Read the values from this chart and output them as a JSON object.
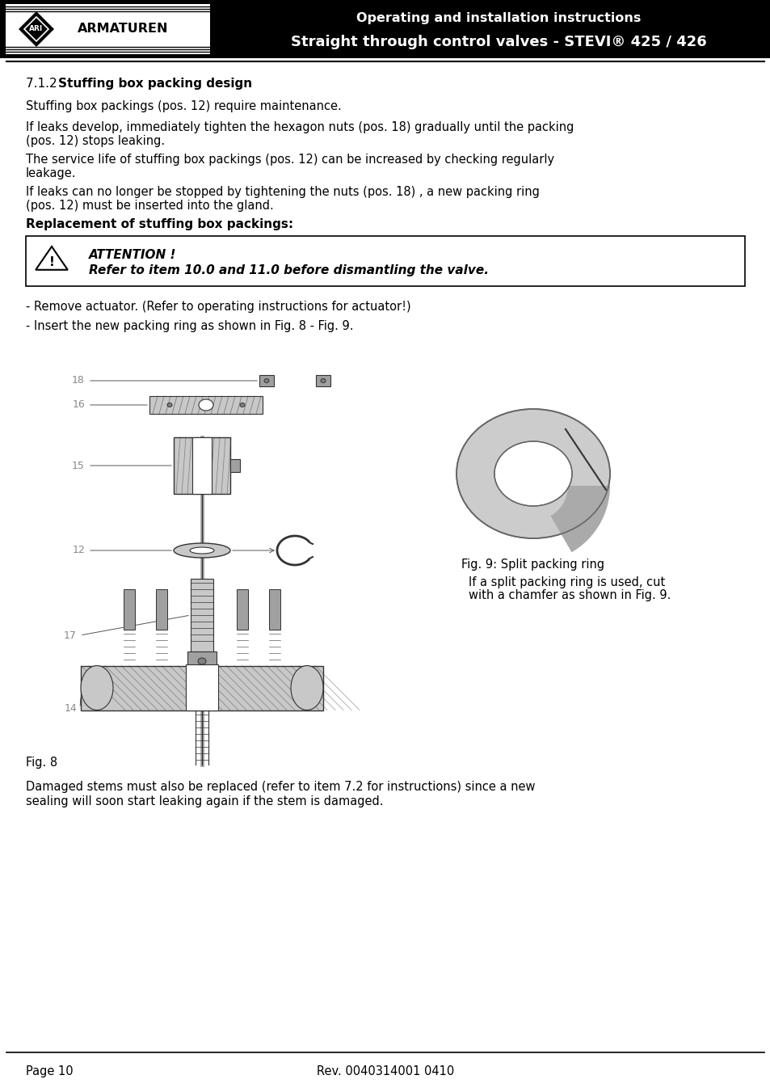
{
  "header_title_line1": "Operating and installation instructions",
  "header_title_line2": "Straight through control valves - STEVI® 425 / 426",
  "header_bg": "#000000",
  "section_title_num": "7.1.2  ",
  "section_title_bold": "Stuffing box packing design",
  "para1": "Stuffing box packings (pos. 12) require maintenance.",
  "para2": "If leaks develop, immediately tighten the hexagon nuts (pos. 18) gradually until the packing\n(pos. 12) stops leaking.",
  "para3": "The service life of stuffing box packings (pos. 12) can be increased by checking regularly\nleakage.",
  "para4": "If leaks can no longer be stopped by tightening the nuts (pos. 18) , a new packing ring\n(pos. 12) must be inserted into the gland.",
  "replacement_title": "Replacement of stuffing box packings:",
  "attention_title": "ATTENTION !",
  "attention_body": "Refer to item 10.0 and 11.0 before dismantling the valve.",
  "bullet1": "- Remove actuator. (Refer to operating instructions for actuator!)",
  "bullet2": "- Insert the new packing ring as shown in Fig. 8 - Fig. 9.",
  "fig8_label": "Fig. 8",
  "fig9_label": "Fig. 9: Split packing ring",
  "fig9_caption_line1": "If a split packing ring is used, cut",
  "fig9_caption_line2": "with a chamfer as shown in Fig. 9.",
  "damaged_text_line1": "Damaged stems must also be replaced (refer to item 7.2 for instructions) since a new",
  "damaged_text_line2": "sealing will soon start leaking again if the stem is damaged.",
  "footer_left": "Page 10",
  "footer_center": "Rev. 0040314001 0410",
  "bg_color": "#ffffff",
  "text_color": "#000000",
  "label_color": "#888888",
  "body_fs": 10.5,
  "section_fs": 11.0,
  "label_fs": 9.0
}
